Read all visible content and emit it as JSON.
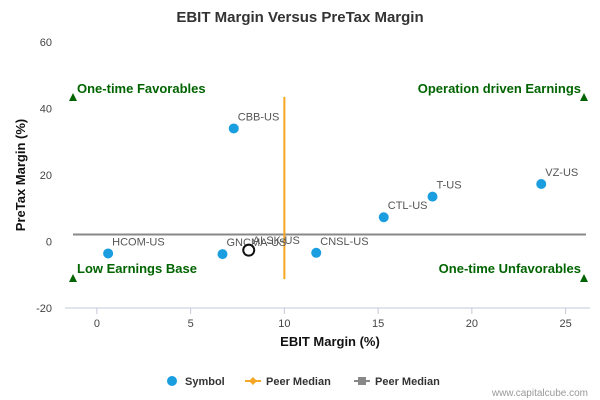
{
  "chart_data": {
    "type": "scatter",
    "title": "EBIT Margin Versus PreTax Margin",
    "xlabel": "EBIT Margin (%)",
    "ylabel": "PreTax Margin (%)",
    "xlim": [
      -1.7,
      26.3
    ],
    "ylim": [
      -20,
      60
    ],
    "xticks": [
      0,
      5,
      10,
      15,
      20,
      25
    ],
    "yticks": [
      -20,
      0,
      20,
      40,
      60
    ],
    "grid": false,
    "points": [
      {
        "label": "CBB-US",
        "x": 7.3,
        "y": 34.0,
        "color": "#1a9ee0"
      },
      {
        "label": "VZ-US",
        "x": 23.7,
        "y": 17.3,
        "color": "#1a9ee0"
      },
      {
        "label": "T-US",
        "x": 17.9,
        "y": 13.5,
        "color": "#1a9ee0"
      },
      {
        "label": "CTL-US",
        "x": 15.3,
        "y": 7.3,
        "color": "#1a9ee0"
      },
      {
        "label": "HCOM-US",
        "x": 0.6,
        "y": -3.6,
        "color": "#1a9ee0"
      },
      {
        "label": "GNCMA-US",
        "x": 6.7,
        "y": -3.8,
        "color": "#1a9ee0"
      },
      {
        "label": "CNSL-US",
        "x": 11.7,
        "y": -3.4,
        "color": "#1a9ee0"
      }
    ],
    "subject": {
      "label": "ALSK-US",
      "x": 8.1,
      "y": -2.6
    },
    "peer_median_x": 10.0,
    "peer_median_y": 2.1,
    "quadrant_labels": {
      "top_left": "One-time Favorables",
      "top_right": "Operation driven Earnings",
      "bottom_left": "Low Earnings Base",
      "bottom_right": "One-time Unfavorables"
    },
    "legend": {
      "position": "bottom",
      "items": [
        {
          "label": "Symbol",
          "color": "#1a9ee0",
          "marker": "circle"
        },
        {
          "label": "Peer Median",
          "color": "#f5a623",
          "marker": "diamond"
        },
        {
          "label": "Peer Median",
          "color": "#888888",
          "marker": "square"
        }
      ]
    },
    "credit": "www.capitalcube.com",
    "colors": {
      "vertical_median": "#f5a623",
      "horizontal_median": "#888888",
      "quadrant": "#006400"
    }
  }
}
